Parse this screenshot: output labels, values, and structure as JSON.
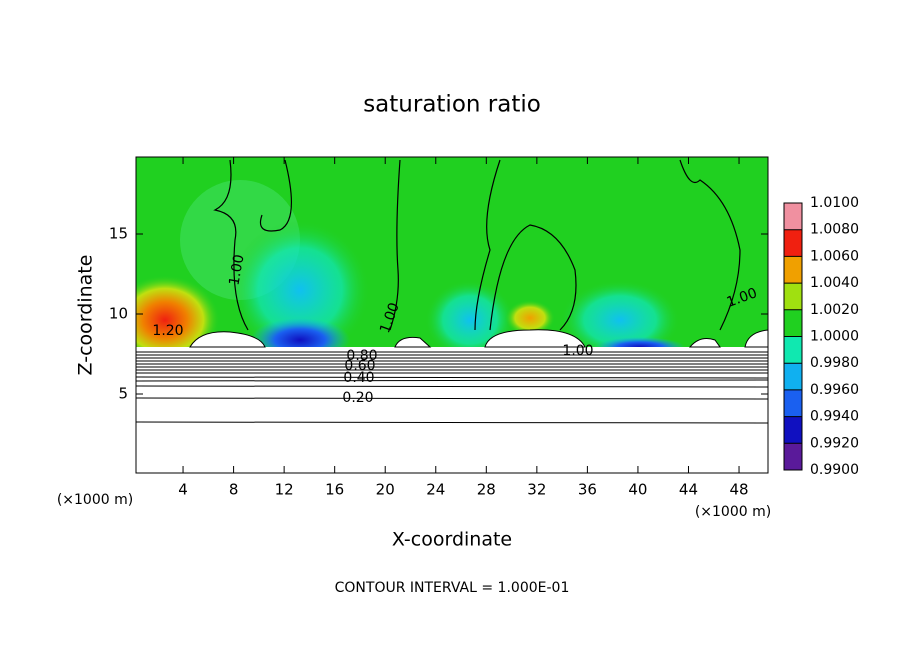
{
  "chart_data": {
    "type": "contour",
    "title": "saturation ratio",
    "x_label": "X-coordinate",
    "y_label": "Z-coordinate",
    "x_unit": "(×1000 m)",
    "footer": "CONTOUR INTERVAL = 1.000E-01",
    "xlim": [
      0,
      50
    ],
    "ylim": [
      0,
      20
    ],
    "xticks": [
      4,
      8,
      12,
      16,
      20,
      24,
      28,
      32,
      36,
      40,
      44,
      48
    ],
    "yticks": [
      5,
      10,
      15
    ],
    "colorbar": {
      "lim": [
        0.99,
        1.01
      ],
      "ticks": [
        {
          "value": 0.99,
          "label": "0.9900"
        },
        {
          "value": 0.992,
          "label": "0.9920"
        },
        {
          "value": 0.994,
          "label": "0.9940"
        },
        {
          "value": 0.996,
          "label": "0.9960"
        },
        {
          "value": 0.998,
          "label": "0.9980"
        },
        {
          "value": 1.0,
          "label": "1.0000"
        },
        {
          "value": 1.002,
          "label": "1.0020"
        },
        {
          "value": 1.004,
          "label": "1.0040"
        },
        {
          "value": 1.006,
          "label": "1.0060"
        },
        {
          "value": 1.008,
          "label": "1.0080"
        },
        {
          "value": 1.01,
          "label": "1.0100"
        }
      ],
      "colors": [
        "#5a1a9a",
        "#1010c0",
        "#1a60f0",
        "#10b0f0",
        "#10e8b0",
        "#20d020",
        "#a0e010",
        "#f0a000",
        "#f02010",
        "#f090a0"
      ]
    },
    "contour_labels": [
      "1.20",
      "0.80",
      "0.60",
      "0.40",
      "0.20",
      "1.00",
      "1.00",
      "1.00",
      "1.00"
    ]
  }
}
